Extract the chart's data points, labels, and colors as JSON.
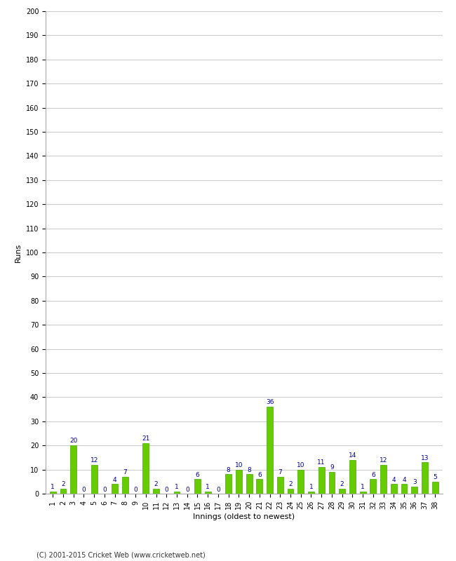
{
  "innings": [
    1,
    2,
    3,
    4,
    5,
    6,
    7,
    8,
    9,
    10,
    11,
    12,
    13,
    14,
    15,
    16,
    17,
    18,
    19,
    20,
    21,
    22,
    23,
    24,
    25,
    26,
    27,
    28,
    29,
    30,
    31,
    32,
    33,
    34,
    35,
    36,
    37,
    38
  ],
  "runs": [
    1,
    2,
    20,
    0,
    12,
    0,
    4,
    7,
    0,
    21,
    2,
    0,
    1,
    0,
    6,
    1,
    0,
    8,
    10,
    8,
    6,
    36,
    7,
    2,
    10,
    1,
    11,
    9,
    2,
    14,
    1,
    6,
    12,
    4,
    4,
    3,
    13,
    5
  ],
  "bar_color": "#66cc00",
  "bar_edge_color": "#44aa00",
  "value_color": "#000099",
  "xlabel": "Innings (oldest to newest)",
  "ylabel": "Runs",
  "ylim": [
    0,
    200
  ],
  "yticks": [
    0,
    10,
    20,
    30,
    40,
    50,
    60,
    70,
    80,
    90,
    100,
    110,
    120,
    130,
    140,
    150,
    160,
    170,
    180,
    190,
    200
  ],
  "footer": "(C) 2001-2015 Cricket Web (www.cricketweb.net)",
  "bg_color": "#ffffff",
  "grid_color": "#cccccc",
  "value_fontsize": 6.5,
  "axis_fontsize": 7,
  "label_fontsize": 8
}
